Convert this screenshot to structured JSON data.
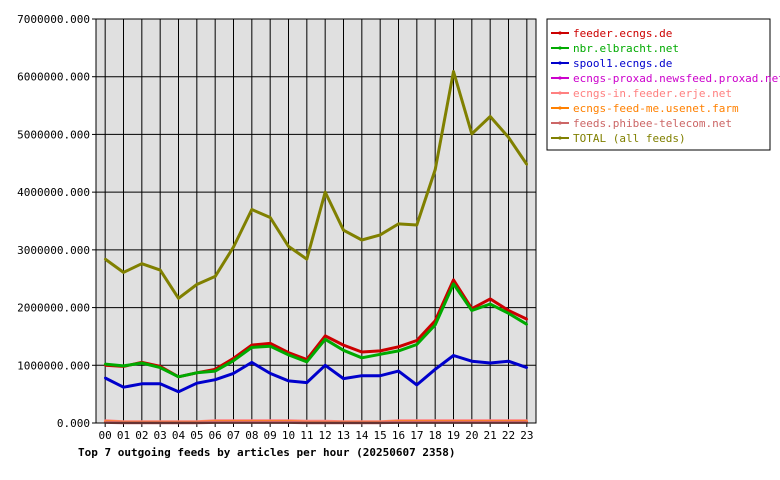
{
  "chart_data": {
    "type": "line",
    "title": "Top 7 outgoing feeds by articles per hour (20250607 2358)",
    "xlabel": "",
    "ylabel": "",
    "categories": [
      "00",
      "01",
      "02",
      "03",
      "04",
      "05",
      "06",
      "07",
      "08",
      "09",
      "10",
      "11",
      "12",
      "13",
      "14",
      "15",
      "16",
      "17",
      "18",
      "19",
      "20",
      "21",
      "22",
      "23"
    ],
    "ylim": [
      0,
      7000000
    ],
    "yticks": [
      0,
      1000000,
      2000000,
      3000000,
      4000000,
      5000000,
      6000000,
      7000000
    ],
    "ytick_labels": [
      "0.000",
      "1000000.000",
      "2000000.000",
      "3000000.000",
      "4000000.000",
      "5000000.000",
      "6000000.000",
      "7000000.000"
    ],
    "grid": true,
    "legend_position": "right",
    "series": [
      {
        "name": "feeder.ecngs.de",
        "color": "#cc0000",
        "values": [
          1000000,
          980000,
          1050000,
          980000,
          800000,
          870000,
          930000,
          1120000,
          1350000,
          1380000,
          1220000,
          1100000,
          1510000,
          1350000,
          1230000,
          1250000,
          1320000,
          1430000,
          1770000,
          2480000,
          1980000,
          2150000,
          1950000,
          1800000
        ]
      },
      {
        "name": "nbr.elbracht.net",
        "color": "#00aa00",
        "values": [
          1020000,
          990000,
          1040000,
          960000,
          800000,
          870000,
          900000,
          1080000,
          1310000,
          1330000,
          1180000,
          1060000,
          1450000,
          1260000,
          1130000,
          1190000,
          1250000,
          1360000,
          1700000,
          2410000,
          1950000,
          2060000,
          1900000,
          1710000
        ]
      },
      {
        "name": "spool1.ecngs.de",
        "color": "#0000cc",
        "values": [
          780000,
          620000,
          680000,
          680000,
          540000,
          690000,
          750000,
          860000,
          1050000,
          860000,
          730000,
          700000,
          1000000,
          770000,
          820000,
          820000,
          900000,
          660000,
          930000,
          1170000,
          1070000,
          1040000,
          1070000,
          960000
        ]
      },
      {
        "name": "ecngs-proxad.newsfeed.proxad.net",
        "color": "#cc00cc",
        "values": [
          30000,
          10000,
          10000,
          10000,
          10000,
          10000,
          20000,
          30000,
          30000,
          30000,
          30000,
          20000,
          20000,
          10000,
          10000,
          10000,
          20000,
          30000,
          30000,
          30000,
          30000,
          30000,
          30000,
          30000
        ]
      },
      {
        "name": "ecngs-in.feeder.erje.net",
        "color": "#ff8080",
        "values": [
          40000,
          20000,
          20000,
          20000,
          20000,
          20000,
          40000,
          40000,
          40000,
          40000,
          40000,
          30000,
          30000,
          20000,
          20000,
          20000,
          40000,
          40000,
          40000,
          40000,
          40000,
          40000,
          40000,
          40000
        ]
      },
      {
        "name": "ecngs-feed-me.usenet.farm",
        "color": "#ff8000",
        "values": [
          20000,
          10000,
          10000,
          10000,
          10000,
          10000,
          20000,
          20000,
          20000,
          20000,
          20000,
          10000,
          10000,
          10000,
          10000,
          10000,
          20000,
          20000,
          20000,
          20000,
          20000,
          20000,
          20000,
          20000
        ]
      },
      {
        "name": "feeds.phibee-telecom.net",
        "color": "#cc6666",
        "values": [
          10000,
          5000,
          5000,
          5000,
          5000,
          5000,
          10000,
          10000,
          10000,
          10000,
          10000,
          5000,
          5000,
          5000,
          5000,
          5000,
          10000,
          10000,
          10000,
          10000,
          10000,
          10000,
          10000,
          10000
        ]
      },
      {
        "name": "TOTAL (all feeds)",
        "color": "#808000",
        "values": [
          2840000,
          2610000,
          2760000,
          2650000,
          2160000,
          2400000,
          2540000,
          3050000,
          3700000,
          3560000,
          3060000,
          2840000,
          4000000,
          3340000,
          3170000,
          3260000,
          3450000,
          3430000,
          4390000,
          6090000,
          5010000,
          5310000,
          4950000,
          4480000
        ]
      }
    ]
  }
}
